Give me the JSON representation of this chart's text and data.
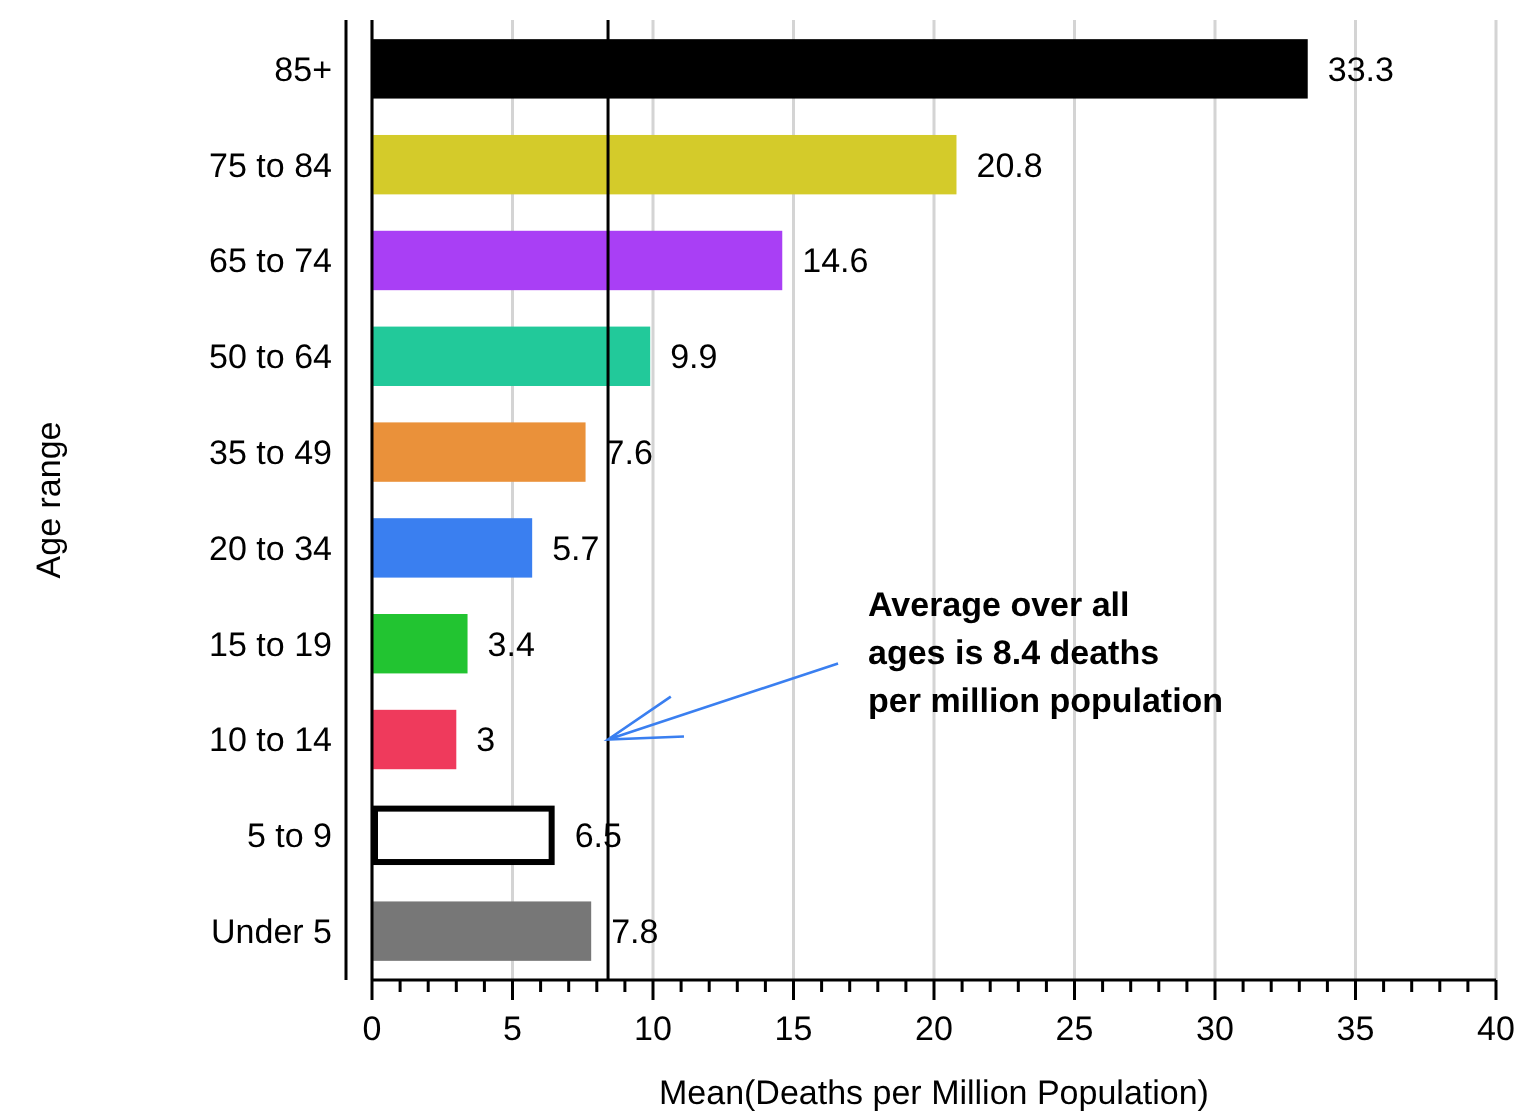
{
  "chart_data": {
    "type": "bar",
    "orientation": "horizontal",
    "xlabel": "Mean(Deaths per Million Population)",
    "ylabel": "Age range",
    "categories": [
      "85+",
      "75 to 84",
      "65 to 74",
      "50 to 64",
      "35 to 49",
      "20 to 34",
      "15 to 19",
      "10 to 14",
      "5 to 9",
      "Under 5"
    ],
    "values": [
      33.3,
      20.8,
      14.6,
      9.9,
      7.6,
      5.7,
      3.4,
      3,
      6.5,
      7.8
    ],
    "colors": [
      "#000000",
      "#d4cb2a",
      "#a93ff5",
      "#22c99a",
      "#ea913a",
      "#3a7ff0",
      "#22c431",
      "#ef3a5c",
      "#ffffff",
      "#777777"
    ],
    "data_labels": true,
    "xlim": [
      0,
      40
    ],
    "xticks": [
      0,
      {
        "value": 1,
        "label": null
      },
      {
        "value": 2,
        "label": null
      },
      {
        "value": 3,
        "label": null
      },
      {
        "value": 4,
        "label": null
      },
      5,
      {
        "value": 6,
        "label": null
      },
      {
        "value": 7,
        "label": null
      },
      {
        "value": 8,
        "label": null
      },
      {
        "value": 9,
        "label": null
      },
      10,
      {
        "value": 11,
        "label": null
      },
      {
        "value": 12,
        "label": null
      },
      {
        "value": 13,
        "label": null
      },
      {
        "value": 14,
        "label": null
      },
      15,
      {
        "value": 16,
        "label": null
      },
      {
        "value": 17,
        "label": null
      },
      {
        "value": 18,
        "label": null
      },
      {
        "value": 19,
        "label": null
      },
      20,
      {
        "value": 21,
        "label": null
      },
      {
        "value": 22,
        "label": null
      },
      {
        "value": 23,
        "label": null
      },
      {
        "value": 24,
        "label": null
      },
      25,
      {
        "value": 26,
        "label": null
      },
      {
        "value": 27,
        "label": null
      },
      {
        "value": 28,
        "label": null
      },
      {
        "value": 29,
        "label": null
      },
      30,
      {
        "value": 31,
        "label": null
      },
      {
        "value": 32,
        "label": null
      },
      {
        "value": 33,
        "label": null
      },
      {
        "value": 34,
        "label": null
      },
      35,
      {
        "value": 36,
        "label": null
      },
      {
        "value": 37,
        "label": null
      },
      {
        "value": 38,
        "label": null
      },
      {
        "value": 39,
        "label": null
      },
      40
    ],
    "grid": "x",
    "ref_lines": [
      {
        "axis": "x",
        "value": 8.4,
        "color": "#000000"
      }
    ],
    "annotations": [
      {
        "text": "Average over all ages is 8.4 deaths per million population",
        "x": 8.4,
        "y": "10 to 14"
      }
    ]
  }
}
